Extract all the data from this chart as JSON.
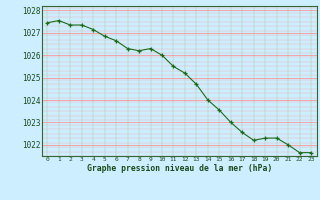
{
  "hours": [
    0,
    1,
    2,
    3,
    4,
    5,
    6,
    7,
    8,
    9,
    10,
    11,
    12,
    13,
    14,
    15,
    16,
    17,
    18,
    19,
    20,
    21,
    22,
    23
  ],
  "pressure": [
    1027.45,
    1027.55,
    1027.35,
    1027.35,
    1027.15,
    1026.85,
    1026.65,
    1026.3,
    1026.2,
    1026.3,
    1026.0,
    1025.5,
    1025.2,
    1024.7,
    1024.0,
    1023.55,
    1023.0,
    1022.55,
    1022.2,
    1022.3,
    1022.3,
    1022.0,
    1021.65,
    1021.65
  ],
  "ylim": [
    1021.5,
    1028.2
  ],
  "yticks": [
    1022,
    1023,
    1024,
    1025,
    1026,
    1027,
    1028
  ],
  "background_color": "#cceeff",
  "grid_color_major": "#ff9999",
  "grid_color_minor": "#ddffdd",
  "line_color": "#1a6b1a",
  "marker_color": "#1a6b1a",
  "xlabel": "Graphe pression niveau de la mer (hPa)",
  "xlabel_color": "#1a4a1a",
  "tick_color": "#1a4a1a",
  "figure_bg": "#cceeff",
  "spine_color": "#336633"
}
